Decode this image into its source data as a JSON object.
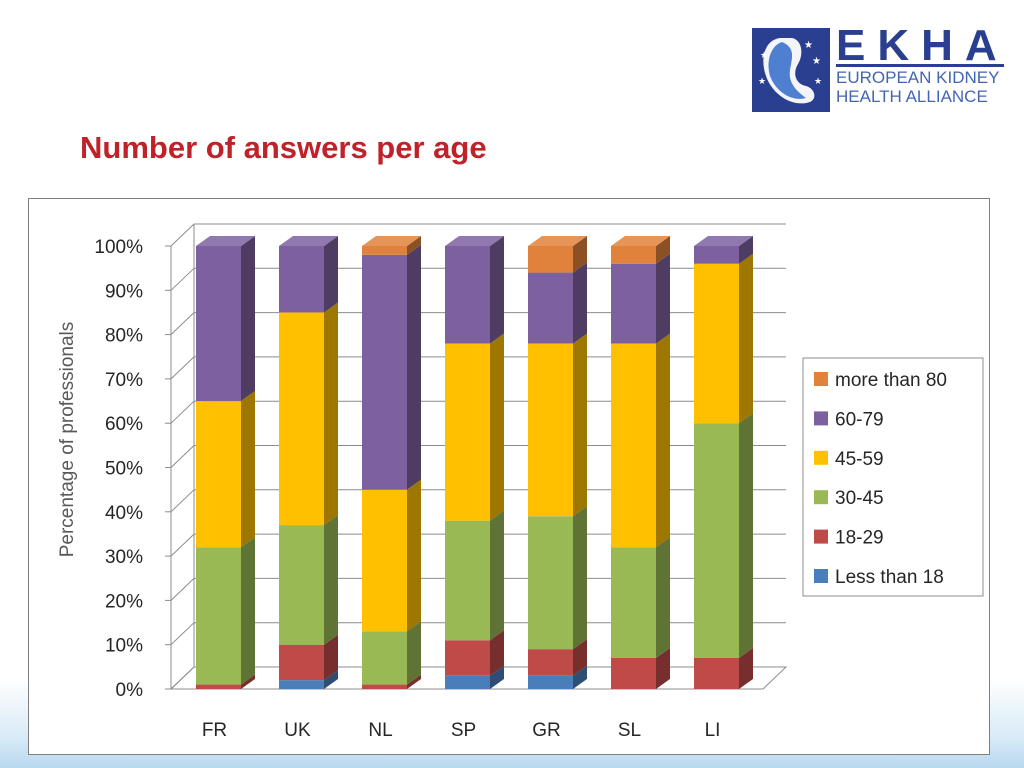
{
  "logo": {
    "letters": "EKHA",
    "line1": "EUROPEAN KIDNEY",
    "line2": "HEALTH ALLIANCE"
  },
  "slide_title": "Number of answers per age",
  "colors": {
    "Less than 18": "#4a7ebb",
    "18-29": "#be4b48",
    "30-45": "#98b954",
    "45-59": "#ffc000",
    "60-79": "#7d60a0",
    "more than 80": "#e0823b"
  },
  "chart_data": {
    "type": "bar",
    "stacked": true,
    "percent": true,
    "title": "",
    "xlabel": "",
    "ylabel": "Percentage of professionals",
    "ylim": [
      0,
      100
    ],
    "yticks": [
      "0%",
      "10%",
      "20%",
      "30%",
      "40%",
      "50%",
      "60%",
      "70%",
      "80%",
      "90%",
      "100%"
    ],
    "categories": [
      "FR",
      "UK",
      "NL",
      "SP",
      "GR",
      "SL",
      "LI"
    ],
    "legend_position": "right",
    "series": [
      {
        "name": "Less than 18",
        "values": [
          0,
          2,
          0,
          3,
          3,
          0,
          0
        ]
      },
      {
        "name": "18-29",
        "values": [
          1,
          8,
          1,
          8,
          6,
          7,
          7
        ]
      },
      {
        "name": "30-45",
        "values": [
          31,
          27,
          12,
          27,
          30,
          25,
          53
        ]
      },
      {
        "name": "45-59",
        "values": [
          33,
          48,
          32,
          40,
          39,
          46,
          36
        ]
      },
      {
        "name": "60-79",
        "values": [
          35,
          15,
          53,
          22,
          16,
          18,
          4
        ]
      },
      {
        "name": "more than 80",
        "values": [
          0,
          0,
          2,
          0,
          6,
          4,
          0
        ]
      }
    ]
  }
}
